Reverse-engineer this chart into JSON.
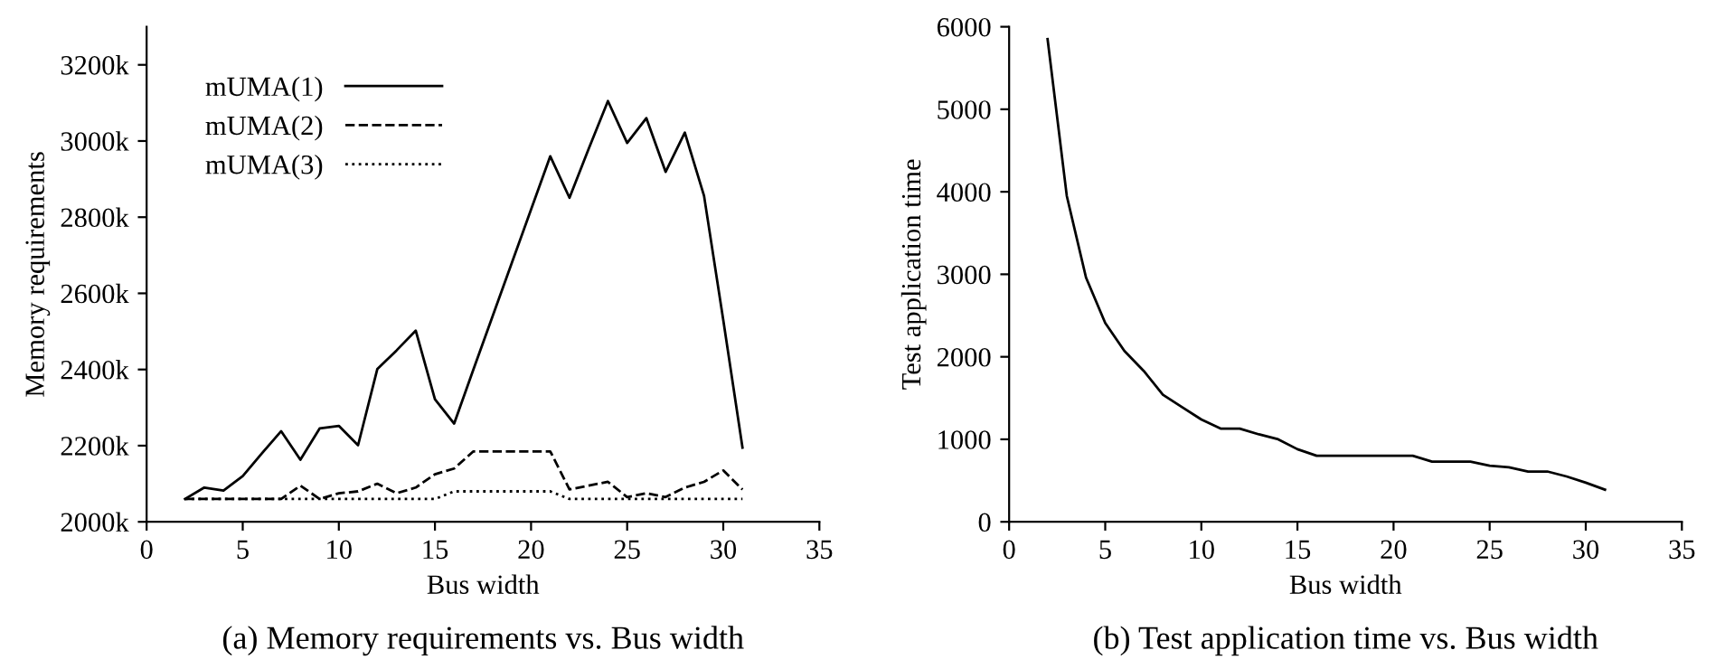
{
  "chart_data": [
    {
      "type": "line",
      "xlabel": "Bus width",
      "ylabel": "Memory requirements",
      "annotations": [
        "(a) Memory requirements vs. Bus width"
      ],
      "x": [
        2,
        3,
        4,
        5,
        6,
        7,
        8,
        9,
        10,
        11,
        12,
        13,
        14,
        15,
        16,
        17,
        18,
        19,
        20,
        21,
        22,
        23,
        24,
        25,
        26,
        27,
        28,
        29,
        30,
        31
      ],
      "series": [
        {
          "name": "mUMA(1)",
          "color": "#000000",
          "line_style": "solid",
          "values": [
            2060,
            2090,
            2082,
            2120,
            2180,
            2238,
            2163,
            2245,
            2252,
            2201,
            2401,
            2450,
            2502,
            2322,
            2258,
            2400,
            2540,
            2680,
            2820,
            2960,
            2851,
            2980,
            3105,
            2995,
            3060,
            2919,
            3022,
            2856,
            2530,
            2195
          ]
        },
        {
          "name": "mUMA(2)",
          "color": "#000000",
          "line_style": "dashed",
          "values": [
            2060,
            2060,
            2060,
            2060,
            2060,
            2060,
            2095,
            2060,
            2075,
            2080,
            2100,
            2075,
            2090,
            2125,
            2140,
            2185,
            2185,
            2185,
            2185,
            2185,
            2085,
            2095,
            2105,
            2065,
            2075,
            2065,
            2090,
            2105,
            2135,
            2085
          ]
        },
        {
          "name": "mUMA(3)",
          "color": "#000000",
          "line_style": "dotted",
          "values": [
            2060,
            2060,
            2060,
            2060,
            2060,
            2060,
            2060,
            2060,
            2060,
            2060,
            2060,
            2060,
            2060,
            2060,
            2080,
            2080,
            2080,
            2080,
            2080,
            2080,
            2060,
            2060,
            2060,
            2060,
            2060,
            2060,
            2060,
            2060,
            2060,
            2060
          ]
        }
      ],
      "xlim": [
        0,
        35
      ],
      "ylim": [
        2000,
        3300
      ],
      "xticks": [
        0,
        5,
        10,
        15,
        20,
        25,
        30,
        35
      ],
      "yticks": [
        {
          "value": 2000,
          "label": "2000k"
        },
        {
          "value": 2200,
          "label": "2200k"
        },
        {
          "value": 2400,
          "label": "2400k"
        },
        {
          "value": 2600,
          "label": "2600k"
        },
        {
          "value": 2800,
          "label": "2800k"
        },
        {
          "value": 3000,
          "label": "3000k"
        },
        {
          "value": 3200,
          "label": "3200k"
        }
      ],
      "legend": "top left",
      "grid": false
    },
    {
      "type": "line",
      "xlabel": "Bus width",
      "ylabel": "Test application time",
      "annotations": [
        "(b) Test application time vs. Bus width"
      ],
      "x": [
        2,
        3,
        4,
        5,
        6,
        7,
        8,
        9,
        10,
        11,
        12,
        13,
        14,
        15,
        16,
        17,
        18,
        19,
        20,
        21,
        22,
        23,
        24,
        25,
        26,
        27,
        28,
        29,
        30,
        31
      ],
      "series": [
        {
          "color": "#000000",
          "line_style": "solid",
          "values": [
            5850,
            3950,
            2960,
            2410,
            2070,
            1830,
            1540,
            1390,
            1240,
            1130,
            1130,
            1060,
            1000,
            880,
            800,
            800,
            800,
            800,
            800,
            800,
            730,
            730,
            730,
            680,
            660,
            610,
            610,
            550,
            475,
            390
          ]
        }
      ],
      "xlim": [
        0,
        35
      ],
      "ylim": [
        0,
        6000
      ],
      "xticks": [
        0,
        5,
        10,
        15,
        20,
        25,
        30,
        35
      ],
      "yticks": [
        0,
        1000,
        2000,
        3000,
        4000,
        5000,
        6000
      ],
      "legend": false,
      "grid": false
    }
  ]
}
